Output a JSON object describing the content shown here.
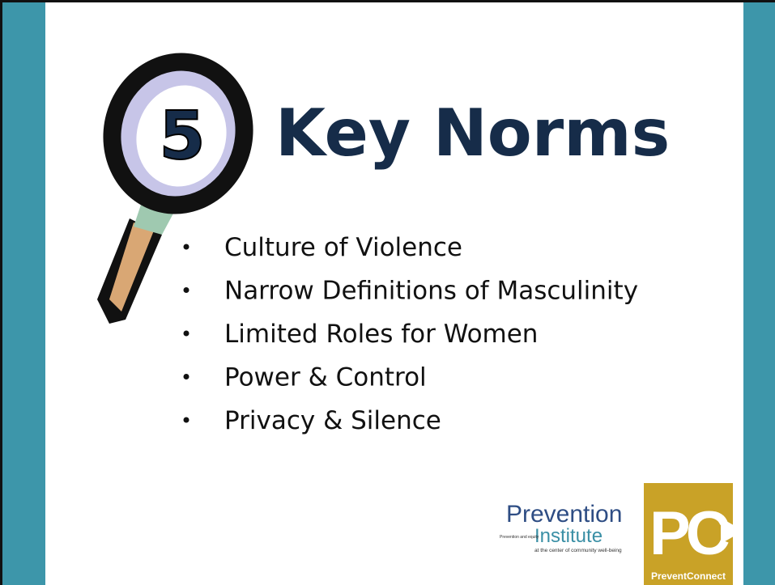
{
  "slide": {
    "number": "5",
    "title": "Key Norms",
    "bullets": [
      "Culture of Violence",
      "Narrow Definitions of Masculinity",
      "Limited Roles for Women",
      "Power & Control",
      "Privacy & Silence"
    ]
  },
  "logos": {
    "prevention_institute": {
      "line1": "Prevention",
      "line2": "Institute",
      "small1": "Prevention and equity",
      "small2": "at the center of community well-being"
    },
    "prevent_connect": {
      "mark": "PC",
      "name": "PreventConnect"
    }
  }
}
